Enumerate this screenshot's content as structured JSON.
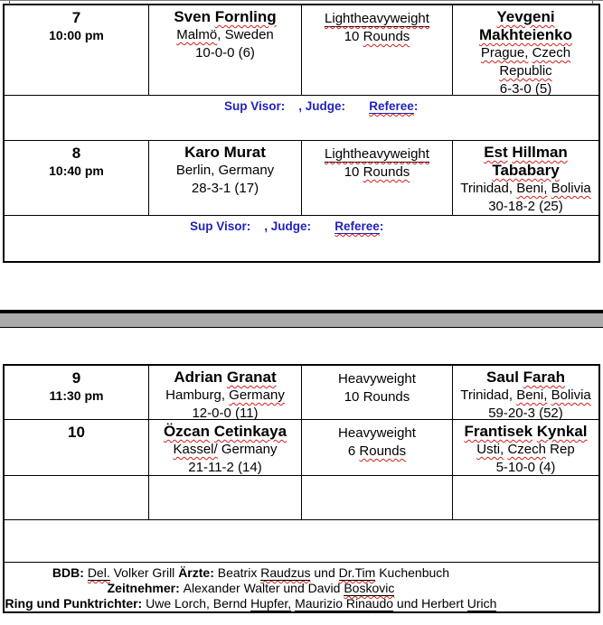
{
  "colors": {
    "link_blue": "#2222bd",
    "squiggle_red": "#cf1f1f",
    "divider_grey": "#ababab"
  },
  "officials_line": {
    "segments": [
      {
        "t": "Sup Visor:    , Judge:       "
      },
      {
        "t": "Referee",
        "q": 1,
        "u": 1
      },
      {
        "t": ":"
      }
    ]
  },
  "bouts": [
    {
      "no": "7",
      "time": "10:00 pm",
      "f1_name": [
        {
          "t": "Sven "
        },
        {
          "t": "Fornling",
          "q": 1
        }
      ],
      "f1_city": [
        {
          "t": "Malmö",
          "q": 1
        },
        {
          "t": ", Sweden"
        }
      ],
      "f1_record": "10-0-0 (6)",
      "weight": [
        {
          "t": "Lightheavyweight",
          "q": 1,
          "u": 1
        },
        {
          "br": 1
        },
        {
          "t": "10 "
        },
        {
          "t": "Rounds",
          "q": 1
        }
      ],
      "f2_name": [
        {
          "t": "Yevgeni",
          "q": 1
        },
        {
          "br": 1
        },
        {
          "t": "Makhteienko",
          "q": 1
        }
      ],
      "f2_city": [
        {
          "t": "Prague,",
          "q": 1
        },
        {
          "t": " "
        },
        {
          "t": "Czech",
          "q": 1
        },
        {
          "br": 1
        },
        {
          "t": "Republic",
          "q": 1
        }
      ],
      "f2_record": "6-3-0 (5)"
    },
    {
      "no": "8",
      "time": "10:40 pm",
      "f1_name": [
        {
          "t": "Karo Murat"
        }
      ],
      "f1_city": [
        {
          "t": "Berlin, Germany"
        }
      ],
      "f1_record": "28-3-1 (17)",
      "weight": [
        {
          "t": "Lightheavyweight",
          "q": 1,
          "u": 1
        },
        {
          "br": 1
        },
        {
          "t": "10 "
        },
        {
          "t": "Rounds",
          "q": 1
        }
      ],
      "f2_name": [
        {
          "t": "Est",
          "q": 1
        },
        {
          "t": " "
        },
        {
          "t": "Hillman",
          "q": 1
        },
        {
          "br": 1
        },
        {
          "t": "Tababary",
          "q": 1
        }
      ],
      "f2_city": [
        {
          "t": "Trinidad, "
        },
        {
          "t": "Beni,",
          "q": 1
        },
        {
          "t": " "
        },
        {
          "t": "Bolivia",
          "q": 1
        }
      ],
      "f2_record": "30-18-2 (25)"
    },
    {
      "no": "9",
      "time": "11:30 pm",
      "f1_name": [
        {
          "t": "Adrian "
        },
        {
          "t": "Granat",
          "q": 1
        }
      ],
      "f1_city": [
        {
          "t": "Hamburg, "
        },
        {
          "t": "Germany",
          "q": 1
        }
      ],
      "f1_record": "12-0-0 (11)",
      "weight": [
        {
          "t": "Heavyweight"
        },
        {
          "br": 1
        },
        {
          "t": "10 Rounds"
        }
      ],
      "f2_name": [
        {
          "t": "Saul "
        },
        {
          "t": "Farah",
          "q": 1
        }
      ],
      "f2_city": [
        {
          "t": "Trinidad, "
        },
        {
          "t": "Beni,",
          "q": 1
        },
        {
          "t": " "
        },
        {
          "t": "Bolivia",
          "q": 1
        }
      ],
      "f2_record": "59-20-3 (52)"
    },
    {
      "no": "10",
      "time": "",
      "f1_name": [
        {
          "t": "Özcan",
          "q": 1
        },
        {
          "t": " "
        },
        {
          "t": "Cetinkaya",
          "q": 1
        }
      ],
      "f1_city": [
        {
          "t": "Kassel/",
          "q": 1
        },
        {
          "t": " Germany"
        }
      ],
      "f1_record": "21-11-2 (14)",
      "weight": [
        {
          "t": "Heavyweight"
        },
        {
          "br": 1
        },
        {
          "t": "6 "
        },
        {
          "t": "Rounds",
          "q": 1
        }
      ],
      "f2_name": [
        {
          "t": "Frantisek",
          "q": 1
        },
        {
          "t": " "
        },
        {
          "t": "Kynkal",
          "q": 1
        }
      ],
      "f2_city": [
        {
          "t": "Usti,",
          "q": 1
        },
        {
          "t": " "
        },
        {
          "t": "Czech",
          "q": 1
        },
        {
          "t": " Rep"
        }
      ],
      "f2_record": "5-10-0 (4)"
    }
  ],
  "footer": {
    "line1": [
      {
        "t": "BDB: ",
        "b": 1
      },
      {
        "t": "Del.",
        "q": 1,
        "u": 1
      },
      {
        "t": " Volker Grill   "
      },
      {
        "t": "Ärzte: ",
        "b": 1
      },
      {
        "t": "Beatrix "
      },
      {
        "t": "Raudzus",
        "q": 1,
        "u": 1
      },
      {
        "t": " und "
      },
      {
        "t": "Dr.Tim",
        "q": 1,
        "u": 1
      },
      {
        "t": " Kuchenbuch"
      }
    ],
    "line2": [
      {
        "t": "Zeitnehmer: ",
        "b": 1
      },
      {
        "t": " Alexander Walter und David "
      },
      {
        "t": "Boskovic",
        "q": 1,
        "u": 1
      }
    ],
    "line3": [
      {
        "t": "Ring und Punktrichter: ",
        "b": 1
      },
      {
        "t": "  Uwe Lorch,  Bernd "
      },
      {
        "t": "Hupfer,",
        "q": 1,
        "u": 1
      },
      {
        "t": "  "
      },
      {
        "t": "Maurizio Rinaudo",
        "q": 1,
        "u": 1
      },
      {
        "t": " und  Herbert "
      },
      {
        "t": "Urich",
        "q": 1,
        "u": 1
      }
    ]
  }
}
